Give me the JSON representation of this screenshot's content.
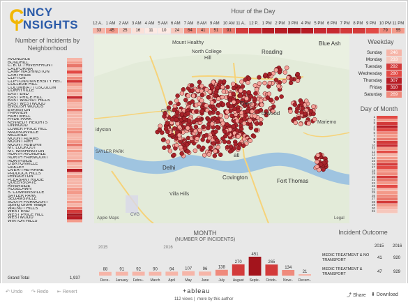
{
  "logo": {
    "top": "INCY",
    "bottom": "NSIGHTS",
    "big_c": "C",
    "big_i": "I"
  },
  "titles": {
    "neighborhood": "Number of Incidents by Neighborhood",
    "hour": "Hour of the Day",
    "weekday": "Weekday",
    "day_of_month": "Day of Month",
    "month": "MONTH",
    "month_sub": "(NUMBER OF INCIDENTS)",
    "outcome": "Incident Outcome"
  },
  "neighborhoods": [
    "AVONDALE",
    "BONDHILL",
    "C. B. D. / RIVERFRONT",
    "CALIFORNIA",
    "CAMP WASHINGTON",
    "CARTHAGE",
    "CLIFTON",
    "CLIFTON/UNIVERSITY HEI..",
    "COLLEGE HILL",
    "COLUMBIA / TUSCULUM",
    "CORRYVILLE",
    "EAST END",
    "EAST PRICE HILL",
    "EAST WALNUT HILLS",
    "EAST WESTWOOD",
    "ENGLISH WOODS",
    "EVANSTON",
    "FAIRVIEW",
    "HARTWELL",
    "HYDE PARK",
    "KENNEDY HEIGHTS",
    "LINWOOD",
    "LOWER PRICE HILL",
    "MADISONVILLE",
    "MILLVALE",
    "MOUNT ADAMS",
    "MOUNT AIRY",
    "MOUNT AUBURN",
    "MT. LOOKOUT",
    "MT. WASHINGTON",
    "NORTH AVONDALE",
    "NORTH FAIRMOUNT",
    "NORTHSIDE",
    "O'BRYONVILLE",
    "OAKLEY",
    "OVER-THE-RHINE",
    "PADDOCK HILLS",
    "PENDLETON",
    "PLEASANT RIDGE",
    "QUEENSGATE",
    "RIVERSIDE",
    "ROSELAWN",
    "S. CUMMINSVILLE",
    "SAYLER PARK",
    "SEDAMSVILLE",
    "SOUTH FAIRMOUNT",
    "Spring Grove Village",
    "WALNUT HILLS",
    "WEST END",
    "WEST PRICE HILL",
    "WESTWOOD",
    "WINTON HILLS"
  ],
  "neighborhood_values": [
    "",
    "",
    "",
    "",
    "",
    "",
    "",
    "",
    "",
    "",
    "",
    "",
    "",
    "",
    "",
    "",
    "",
    "",
    "",
    "",
    "",
    "",
    "",
    "",
    "",
    "",
    "",
    "",
    "",
    "",
    "",
    "",
    "",
    "",
    "",
    "",
    "",
    "",
    "",
    "",
    "",
    "",
    "",
    "",
    "",
    "",
    "",
    "",
    "",
    "",
    "",
    ""
  ],
  "grand_total": {
    "label": "Grand Total",
    "value": "1,937"
  },
  "hours": [
    {
      "label": "12 A..",
      "value": "33"
    },
    {
      "label": "1 AM",
      "value": "45"
    },
    {
      "label": "2 AM",
      "value": "25"
    },
    {
      "label": "3 AM",
      "value": "16"
    },
    {
      "label": "4 AM",
      "value": "11"
    },
    {
      "label": "5 AM",
      "value": "10"
    },
    {
      "label": "6 AM",
      "value": "24"
    },
    {
      "label": "7 AM",
      "value": "64"
    },
    {
      "label": "8 AM",
      "value": "41"
    },
    {
      "label": "9 AM",
      "value": "51"
    },
    {
      "label": "10 AM",
      "value": "91"
    },
    {
      "label": "11 A..",
      "value": ""
    },
    {
      "label": "12 P..",
      "value": ""
    },
    {
      "label": "1 PM",
      "value": ""
    },
    {
      "label": "2 PM",
      "value": ""
    },
    {
      "label": "3 PM",
      "value": ""
    },
    {
      "label": "4 PM",
      "value": ""
    },
    {
      "label": "5 PM",
      "value": ""
    },
    {
      "label": "6 PM",
      "value": ""
    },
    {
      "label": "7 PM",
      "value": ""
    },
    {
      "label": "8 PM",
      "value": ""
    },
    {
      "label": "9 PM",
      "value": ""
    },
    {
      "label": "10 PM",
      "value": "79"
    },
    {
      "label": "11 PM",
      "value": "55"
    }
  ],
  "weekdays": [
    {
      "label": "Sunday",
      "value": "246"
    },
    {
      "label": "Monday",
      "value": "233"
    },
    {
      "label": "Tuesday",
      "value": "292"
    },
    {
      "label": "Wednesday",
      "value": "280"
    },
    {
      "label": "Thursday",
      "value": "307"
    },
    {
      "label": "Friday",
      "value": "310"
    },
    {
      "label": "Saturday",
      "value": "269"
    }
  ],
  "days": [
    "1",
    "2",
    "3",
    "4",
    "5",
    "6",
    "7",
    "8",
    "9",
    "10",
    "11",
    "12",
    "13",
    "14",
    "15",
    "16",
    "17",
    "18",
    "19",
    "20",
    "21",
    "22",
    "23",
    "24",
    "25",
    "26",
    "27",
    "28",
    "29",
    "30",
    "31"
  ],
  "map_labels": [
    {
      "id": "mount-healthy",
      "text": "Mount Healthy"
    },
    {
      "id": "north-college-hill",
      "text": "North College"
    },
    {
      "id": "north-college-hill-2",
      "text": "Hill"
    },
    {
      "id": "reading",
      "text": "Reading"
    },
    {
      "id": "blue-ash",
      "text": "Blue Ash"
    },
    {
      "id": "chev",
      "text": "Chev"
    },
    {
      "id": "bern",
      "text": "Bern"
    },
    {
      "id": "norwood",
      "text": "orwood"
    },
    {
      "id": "mariemont",
      "text": "Mariemo"
    },
    {
      "id": "delhi",
      "text": "Delhi"
    },
    {
      "id": "covington",
      "text": "Covington"
    },
    {
      "id": "fort-thomas",
      "text": "Fort Thomas"
    },
    {
      "id": "villa-hills",
      "text": "Villa Hills"
    },
    {
      "id": "sayler-park",
      "text": "SAYLER PARK"
    },
    {
      "id": "idyston",
      "text": "idyston"
    },
    {
      "id": "mati",
      "text": "ati"
    },
    {
      "id": "cvg",
      "text": "CVG"
    },
    {
      "id": "apple-maps",
      "text": "Apple Maps"
    },
    {
      "id": "legal",
      "text": "Legal"
    }
  ],
  "month_years": [
    "2015",
    "2016"
  ],
  "chart_data": {
    "type": "bar",
    "title": "MONTH",
    "subtitle": "(NUMBER OF INCIDENTS)",
    "categories": [
      "Dece..",
      "January",
      "Febru..",
      "March",
      "April",
      "May",
      "June",
      "July",
      "August",
      "Septe..",
      "Octob..",
      "Nove..",
      "Decem.."
    ],
    "values": [
      88,
      91,
      92,
      90,
      94,
      107,
      96,
      138,
      270,
      451,
      265,
      134,
      21
    ],
    "year_groups": [
      {
        "label": "2015",
        "span": 1
      },
      {
        "label": "2016",
        "span": 12
      }
    ]
  },
  "outcome": {
    "years": [
      "2015",
      "2016"
    ],
    "rows": [
      {
        "label": "MEDIC TREATMENT & NO TRANSPORT",
        "v2015": "41",
        "v2016": "920"
      },
      {
        "label": "MEDIC TREATMENT & TRANSPORT",
        "v2015": "47",
        "v2016": "929"
      }
    ]
  },
  "footer": {
    "undo": "Undo",
    "redo": "Redo",
    "revert": "Revert",
    "brand": "+ableau",
    "views": "112 views",
    "more": "more by this author",
    "share": "Share",
    "download": "Download"
  },
  "colors": {
    "accent": "#c0392b",
    "logo_blue": "#2a5aa8",
    "logo_yellow": "#f2b705",
    "map_dot": "#a8232a"
  }
}
